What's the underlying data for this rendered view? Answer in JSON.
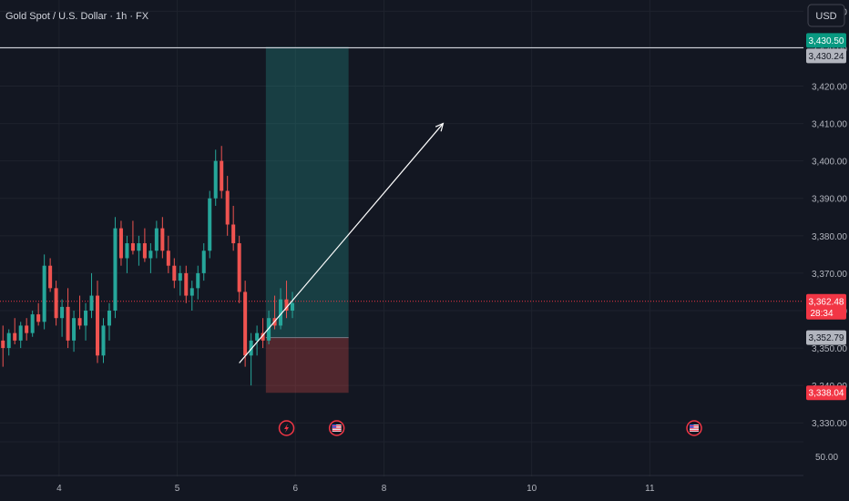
{
  "header": {
    "title": "Gold Spot / U.S. Dollar · 1h · FX"
  },
  "currency_button": {
    "label": "USD"
  },
  "colors": {
    "background": "#131722",
    "up": "#26a69a",
    "down": "#ef5350",
    "grid": "#1e222d",
    "text": "#b2b5be"
  },
  "chart_data": {
    "type": "candlestick",
    "symbol": "Gold Spot / U.S. Dollar",
    "interval": "1h",
    "ylim": [
      3323,
      3443
    ],
    "y_ticks": [
      3330,
      3340,
      3350,
      3360,
      3370,
      3380,
      3390,
      3400,
      3410,
      3420,
      3430,
      3440
    ],
    "y_tick_labels": [
      "3,330.00",
      "3,340.00",
      "3,350.00",
      "3,360.00",
      "3,370.00",
      "3,380.00",
      "3,390.00",
      "3,400.00",
      "3,410.00",
      "3,420.00",
      "3,430.00",
      "3,440.00"
    ],
    "extra_tick_label": "50.00",
    "xlim": [
      0,
      136
    ],
    "x_ticks": [
      {
        "x": 10,
        "label": "4"
      },
      {
        "x": 30,
        "label": "5"
      },
      {
        "x": 50,
        "label": "6"
      },
      {
        "x": 65,
        "label": "8"
      },
      {
        "x": 90,
        "label": "10"
      },
      {
        "x": 110,
        "label": "11"
      }
    ],
    "candles": [
      [
        3352,
        3356,
        3345,
        3350
      ],
      [
        3350,
        3355,
        3348,
        3354
      ],
      [
        3354,
        3358,
        3351,
        3352
      ],
      [
        3352,
        3357,
        3350,
        3356
      ],
      [
        3356,
        3358,
        3352,
        3354
      ],
      [
        3354,
        3360,
        3353,
        3359
      ],
      [
        3359,
        3362,
        3356,
        3357
      ],
      [
        3357,
        3375,
        3355,
        3372
      ],
      [
        3372,
        3374,
        3365,
        3366
      ],
      [
        3366,
        3368,
        3356,
        3358
      ],
      [
        3358,
        3363,
        3353,
        3361
      ],
      [
        3361,
        3366,
        3350,
        3352
      ],
      [
        3352,
        3360,
        3349,
        3358
      ],
      [
        3358,
        3364,
        3355,
        3356
      ],
      [
        3356,
        3362,
        3352,
        3360
      ],
      [
        3360,
        3370,
        3358,
        3364
      ],
      [
        3364,
        3368,
        3346,
        3348
      ],
      [
        3348,
        3358,
        3346,
        3356
      ],
      [
        3356,
        3362,
        3352,
        3360
      ],
      [
        3360,
        3385,
        3358,
        3382
      ],
      [
        3382,
        3384,
        3372,
        3374
      ],
      [
        3374,
        3380,
        3370,
        3378
      ],
      [
        3378,
        3384,
        3375,
        3376
      ],
      [
        3376,
        3380,
        3372,
        3378
      ],
      [
        3378,
        3382,
        3373,
        3374
      ],
      [
        3374,
        3378,
        3370,
        3376
      ],
      [
        3376,
        3384,
        3374,
        3382
      ],
      [
        3382,
        3385,
        3374,
        3376
      ],
      [
        3376,
        3380,
        3370,
        3372
      ],
      [
        3372,
        3374,
        3366,
        3368
      ],
      [
        3368,
        3372,
        3364,
        3370
      ],
      [
        3370,
        3372,
        3362,
        3364
      ],
      [
        3364,
        3368,
        3360,
        3366
      ],
      [
        3366,
        3372,
        3363,
        3370
      ],
      [
        3370,
        3378,
        3368,
        3376
      ],
      [
        3376,
        3392,
        3374,
        3390
      ],
      [
        3390,
        3403,
        3388,
        3400
      ],
      [
        3400,
        3404,
        3390,
        3392
      ],
      [
        3392,
        3396,
        3380,
        3383
      ],
      [
        3383,
        3388,
        3376,
        3378
      ],
      [
        3378,
        3380,
        3362,
        3365
      ],
      [
        3365,
        3368,
        3345,
        3348
      ],
      [
        3348,
        3354,
        3340,
        3352
      ],
      [
        3352,
        3356,
        3348,
        3354
      ],
      [
        3354,
        3358,
        3350,
        3352
      ],
      [
        3352,
        3360,
        3351,
        3358
      ],
      [
        3358,
        3364,
        3355,
        3356
      ],
      [
        3356,
        3366,
        3355,
        3363
      ],
      [
        3363,
        3368,
        3358,
        3360
      ],
      [
        3360,
        3365,
        3358,
        3362
      ]
    ],
    "levels": [
      {
        "price": 3430.5,
        "label": "3,430.50",
        "color": "#089981"
      },
      {
        "price": 3430.24,
        "label": "3,430.24",
        "color": "#b2b5be"
      },
      {
        "price": 3362.48,
        "label": "3,362.48",
        "sublabel": "28:34",
        "color": "#f23645"
      },
      {
        "price": 3352.79,
        "label": "3,352.79",
        "color": "#b2b5be"
      },
      {
        "price": 3338.04,
        "label": "3,338.04",
        "color": "#f23645"
      }
    ],
    "position": {
      "type": "long",
      "entry": 3352.79,
      "target": 3430.5,
      "stop": 3338.04,
      "x_start": 45,
      "x_end": 59
    },
    "arrow": {
      "from": [
        40.5,
        3346
      ],
      "to": [
        75,
        3410
      ]
    },
    "event_markers": [
      {
        "x": 48.5,
        "kind": "lightning"
      },
      {
        "x": 57,
        "kind": "us-flag"
      },
      {
        "x": 117.5,
        "kind": "us-flag"
      }
    ]
  }
}
